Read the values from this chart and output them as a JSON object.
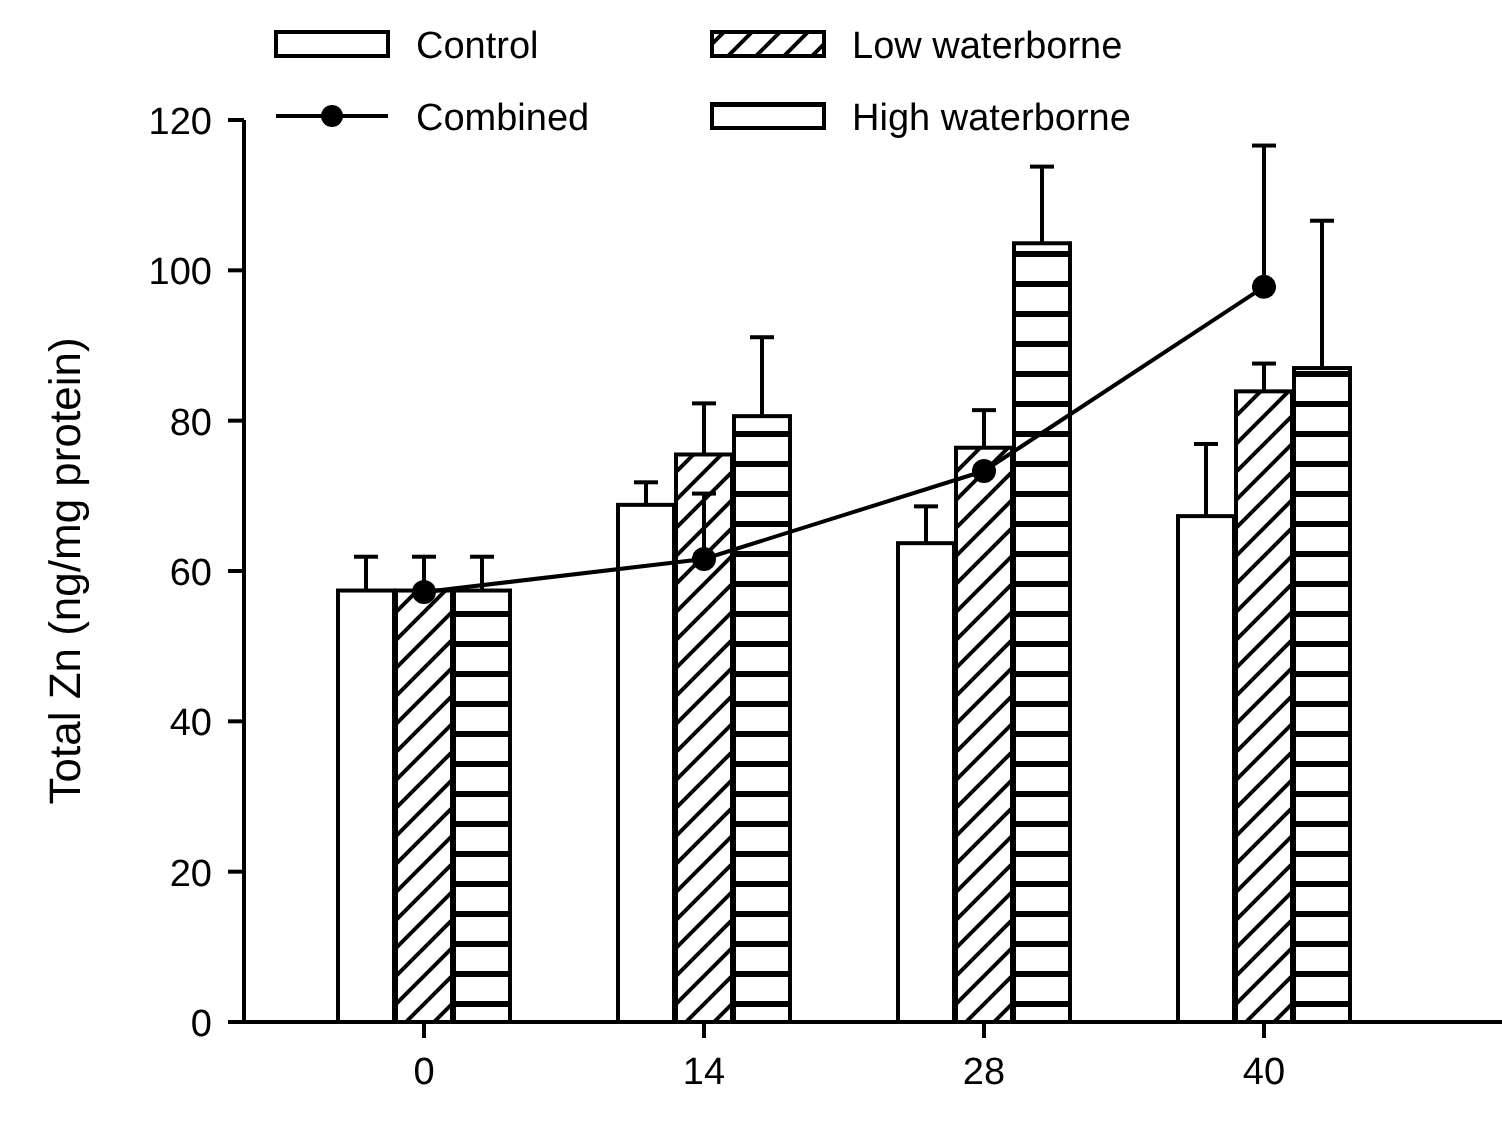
{
  "chart_data": {
    "type": "bar",
    "ylabel": "Total Zn (ng/mg protein)",
    "categories": [
      "0",
      "14",
      "28",
      "40"
    ],
    "series": [
      {
        "name": "Control",
        "color": "#ffffff",
        "values": [
          57.4,
          68.8,
          63.7,
          67.3
        ],
        "errors": [
          [
            57.4,
            61.9
          ],
          [
            68.8,
            71.8
          ],
          [
            63.7,
            68.6
          ],
          [
            67.3,
            76.9
          ]
        ]
      },
      {
        "name": "Low waterborne",
        "color": "#000000",
        "values": [
          57.4,
          75.5,
          76.4,
          83.9
        ],
        "errors": [
          [
            57.4,
            61.9
          ],
          [
            75.5,
            82.3
          ],
          [
            76.4,
            81.4
          ],
          [
            83.9,
            87.6
          ]
        ]
      },
      {
        "name": "High waterborne",
        "color": "#000000",
        "values": [
          57.4,
          80.6,
          103.6,
          87
        ],
        "errors": [
          [
            57.4,
            61.9
          ],
          [
            80.6,
            91.1
          ],
          [
            103.6,
            113.8
          ],
          [
            87,
            106.6
          ]
        ]
      },
      {
        "name": "Combined",
        "type": "line",
        "color": "#000000",
        "values": [
          57.2,
          61.6,
          73.3,
          97.8
        ],
        "errors": [
          null,
          [
            61.6,
            70.3
          ],
          null,
          [
            97.8,
            116.6
          ]
        ]
      }
    ],
    "ylim": [
      0,
      120
    ],
    "yticks": [
      0,
      20,
      40,
      60,
      80,
      100,
      120
    ],
    "legend": "top",
    "marker": "circle",
    "line_style": "solid"
  }
}
